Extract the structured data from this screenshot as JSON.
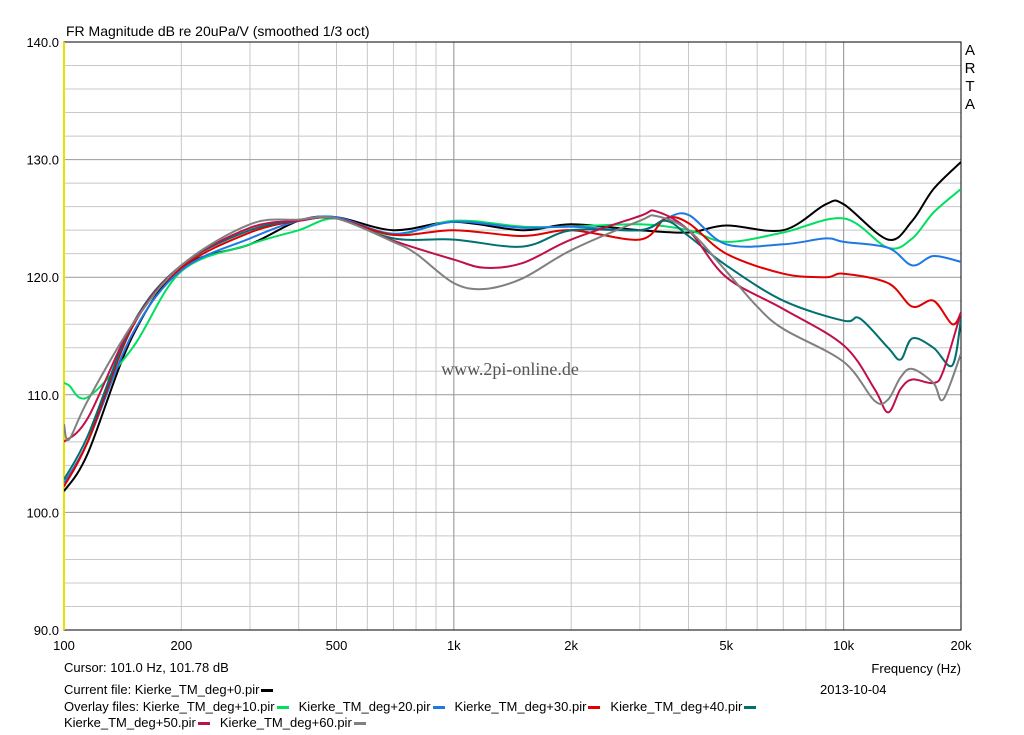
{
  "chart_data": {
    "type": "line",
    "title": "FR Magnitude dB re 20uPa/V (smoothed 1/3 oct)",
    "xlabel": "Frequency (Hz)",
    "ylabel": "",
    "x_scale": "log",
    "xlim": [
      100,
      20000
    ],
    "ylim": [
      90,
      140
    ],
    "x_ticks": [
      100,
      200,
      500,
      1000,
      2000,
      5000,
      10000,
      20000
    ],
    "x_tick_labels": [
      "100",
      "200",
      "500",
      "1k",
      "2k",
      "5k",
      "10k",
      "20k"
    ],
    "y_ticks": [
      90,
      100,
      110,
      120,
      130,
      140
    ],
    "y_tick_labels": [
      "90.0",
      "100.0",
      "110.0",
      "120.0",
      "130.0",
      "140.0"
    ],
    "watermark": "www.2pi-online.de",
    "brand": "ARTA",
    "grid": true,
    "series": [
      {
        "name": "Kierke_TM_deg+0.pir",
        "color": "#000000",
        "x": [
          100,
          115,
          150,
          200,
          300,
          400,
          500,
          700,
          1000,
          1500,
          2000,
          3000,
          4000,
          5000,
          7000,
          9000,
          10000,
          13000,
          15000,
          17000,
          20000
        ],
        "y": [
          101.8,
          105,
          115,
          120.8,
          122.8,
          124.8,
          125.1,
          124,
          124.7,
          124,
          124.5,
          124,
          123.8,
          124.4,
          124,
          126.2,
          126.2,
          123.2,
          124.8,
          127.5,
          129.8
        ]
      },
      {
        "name": "Kierke_TM_deg+10.pir",
        "color": "#00e060",
        "x": [
          100,
          103,
          115,
          150,
          200,
          300,
          400,
          500,
          700,
          1000,
          1500,
          2000,
          3000,
          4000,
          5000,
          7000,
          10000,
          13000,
          15000,
          17000,
          20000
        ],
        "y": [
          111,
          110.8,
          109.8,
          114,
          120.5,
          122.8,
          124,
          125,
          123.6,
          124.8,
          124.3,
          124.3,
          124.5,
          124,
          123,
          123.8,
          125,
          122.5,
          123.3,
          125.5,
          127.5
        ]
      },
      {
        "name": "Kierke_TM_deg+20.pir",
        "color": "#1e78e6",
        "x": [
          100,
          115,
          150,
          200,
          300,
          400,
          500,
          700,
          1000,
          1500,
          2000,
          3000,
          3500,
          4000,
          5000,
          7000,
          9000,
          10000,
          13000,
          15000,
          17000,
          20000
        ],
        "y": [
          102.5,
          106,
          115.2,
          120.6,
          123.3,
          124.8,
          125.1,
          123.7,
          124.7,
          124.2,
          124.3,
          124,
          125,
          125.3,
          122.8,
          122.8,
          123.3,
          123,
          122.5,
          121,
          121.8,
          121.3
        ]
      },
      {
        "name": "Kierke_TM_deg+30.pir",
        "color": "#e00000",
        "x": [
          100,
          115,
          150,
          200,
          300,
          400,
          500,
          700,
          1000,
          1500,
          2000,
          3000,
          3500,
          4000,
          5000,
          7000,
          9000,
          10000,
          13000,
          15000,
          17000,
          19000,
          20000
        ],
        "y": [
          102.2,
          106,
          115.8,
          120.8,
          123.8,
          124.8,
          125,
          123.6,
          124,
          123.5,
          124,
          123.2,
          125,
          124.6,
          122,
          120.3,
          120,
          120.3,
          119.5,
          117.5,
          118,
          116,
          117
        ]
      },
      {
        "name": "Kierke_TM_deg+40.pir",
        "color": "#007070",
        "x": [
          100,
          115,
          150,
          200,
          300,
          400,
          500,
          700,
          1000,
          1500,
          2000,
          3000,
          3500,
          4000,
          5000,
          7000,
          10000,
          11000,
          13000,
          14000,
          15000,
          17000,
          19000,
          20000
        ],
        "y": [
          102.8,
          106.5,
          116,
          121,
          124,
          124.8,
          125,
          123.3,
          123.2,
          122.6,
          124,
          124,
          124.8,
          123.5,
          121,
          118,
          116.3,
          116.5,
          114,
          113,
          114.8,
          114,
          112.5,
          116.5
        ]
      },
      {
        "name": "Kierke_TM_deg+50.pir",
        "color": "#c0104a",
        "x": [
          100,
          115,
          150,
          200,
          300,
          400,
          500,
          700,
          1000,
          1200,
          1500,
          2000,
          3000,
          3300,
          4000,
          5000,
          7000,
          10000,
          12000,
          13000,
          14000,
          15000,
          17000,
          18000,
          20000
        ],
        "y": [
          106,
          108,
          116,
          121,
          124.2,
          124.8,
          125,
          123.1,
          121.5,
          120.8,
          121.2,
          123.2,
          125.2,
          125.6,
          124,
          120,
          117.3,
          114.2,
          110.5,
          108.5,
          110.5,
          111.3,
          111,
          112,
          117
        ]
      },
      {
        "name": "Kierke_TM_deg+60.pir",
        "color": "#808080",
        "x": [
          100,
          103,
          115,
          150,
          200,
          300,
          400,
          500,
          700,
          800,
          1000,
          1200,
          1500,
          2000,
          3000,
          3300,
          4000,
          5000,
          6000,
          7000,
          10000,
          12000,
          13000,
          14000,
          15000,
          17000,
          18000,
          20000
        ],
        "y": [
          107.5,
          106.2,
          109.5,
          116,
          121,
          124.5,
          124.9,
          125,
          123,
          122,
          119.5,
          119,
          119.9,
          122.3,
          124.8,
          125.2,
          124,
          120.5,
          117.5,
          115.6,
          112.8,
          109.5,
          109.6,
          111.5,
          112.2,
          111,
          109.6,
          113.5
        ]
      }
    ]
  },
  "info": {
    "cursor": "Cursor: 101.0 Hz, 101.78 dB",
    "date": "2013-10-04",
    "current_file": "Current file: Kierke_TM_deg+0.pir",
    "overlay_prefix": "Overlay files:"
  }
}
